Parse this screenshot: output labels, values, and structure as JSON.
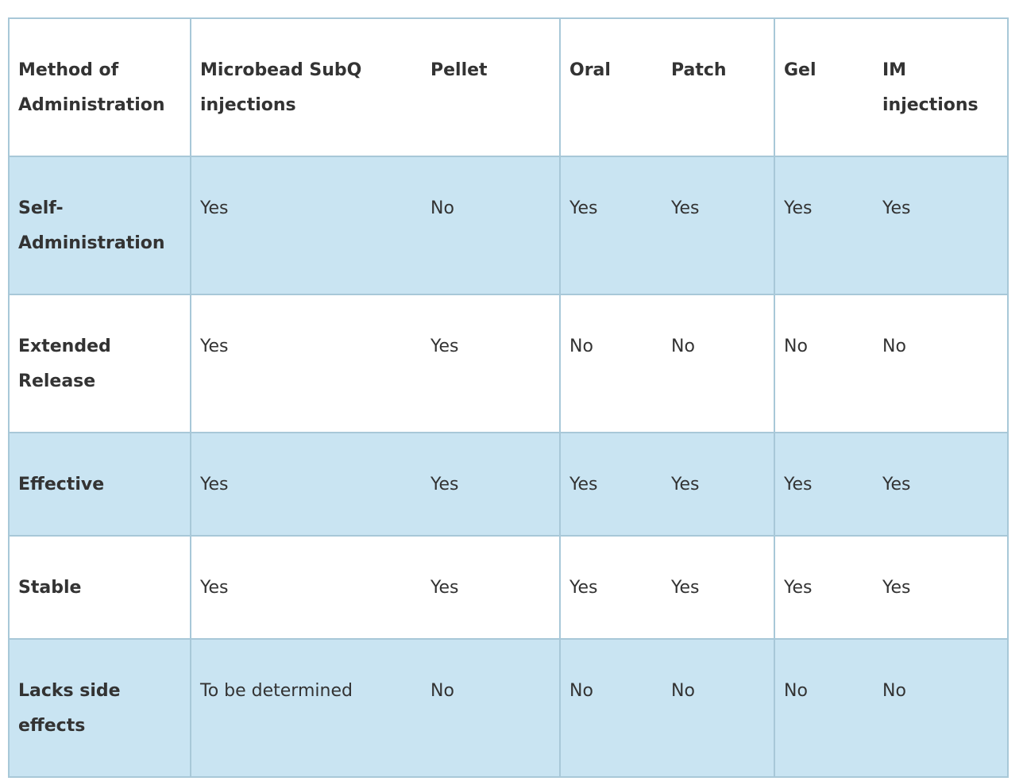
{
  "headers": [
    "Method of Administration",
    "Microbead SubQ injections",
    "Pellet",
    "Oral",
    "Patch",
    "Gel",
    "IM injections"
  ],
  "rows": [
    {
      "label": "Self-Administration",
      "cells": [
        "Yes",
        "No",
        "Yes",
        "Yes",
        "Yes",
        "Yes"
      ]
    },
    {
      "label": "Extended Release",
      "cells": [
        "Yes",
        "Yes",
        "No",
        "No",
        "No",
        "No"
      ]
    },
    {
      "label": "Effective",
      "cells": [
        "Yes",
        "Yes",
        "Yes",
        "Yes",
        "Yes",
        "Yes"
      ]
    },
    {
      "label": "Stable",
      "cells": [
        "Yes",
        "Yes",
        "Yes",
        "Yes",
        "Yes",
        "Yes"
      ]
    },
    {
      "label": "Lacks side effects",
      "cells": [
        "To be determined",
        "No",
        "No",
        "No",
        "No",
        "No"
      ]
    }
  ],
  "colors": {
    "row_highlight": "#c9e4f2",
    "border": "#a8c8d8",
    "text": "#333333"
  }
}
